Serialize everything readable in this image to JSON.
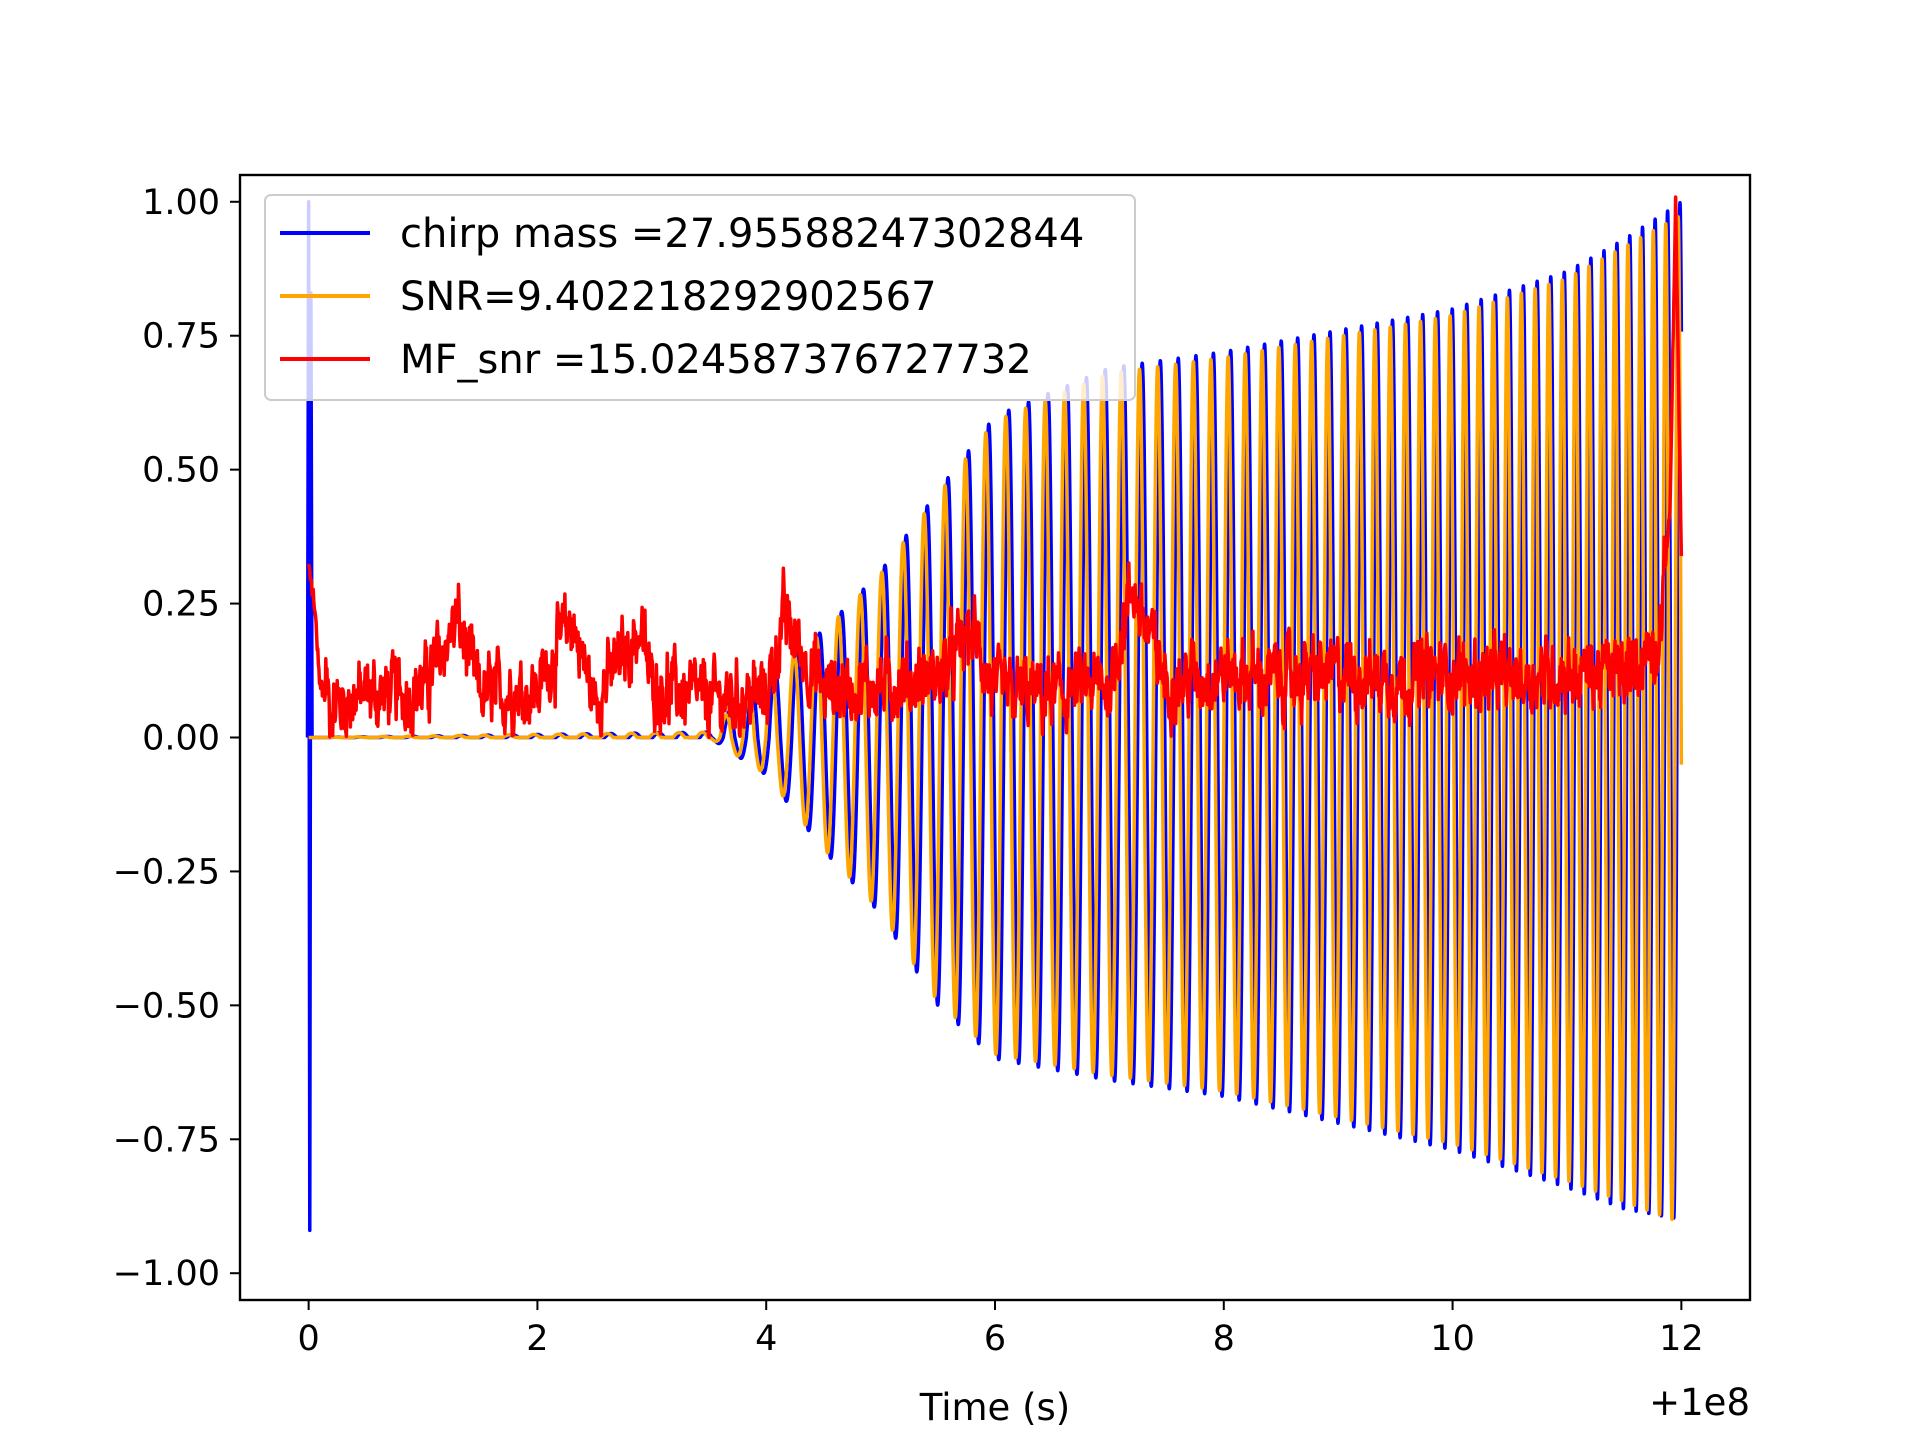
{
  "chart_data": {
    "type": "line",
    "title": "",
    "xlabel": "Time (s)",
    "ylabel": "",
    "x_offset_label": "+1e8",
    "xlim": [
      -0.6,
      12.6
    ],
    "ylim": [
      -1.05,
      1.05
    ],
    "x_ticks": [
      0,
      2,
      4,
      6,
      8,
      10,
      12
    ],
    "x_tick_labels": [
      "0",
      "2",
      "4",
      "6",
      "8",
      "10",
      "12"
    ],
    "y_ticks": [
      1.0,
      0.75,
      0.5,
      0.25,
      0.0,
      -0.25,
      -0.5,
      -0.75,
      -1.0
    ],
    "y_tick_labels": [
      "1.00",
      "0.75",
      "0.50",
      "0.25",
      "0.00",
      "−0.25",
      "−0.50",
      "−0.75",
      "−1.00"
    ],
    "grid": false,
    "legend_position": "top-left",
    "series": [
      {
        "name": "chirp mass =27.95588247302844",
        "color": "#0000ff",
        "description": "blue chirp waveform: spike at t=0 (1.0 / -0.92), then oscillation growing from ~0 after t=3.5 to envelope ~0.68/-0.62 at t=6-7, reaching 1.0/-0.9 at t=12",
        "envelope_t": [
          0.0,
          3.5,
          4.0,
          4.5,
          5.0,
          5.5,
          6.0,
          7.0,
          8.0,
          9.0,
          10.0,
          11.0,
          11.5,
          12.0
        ],
        "envelope_upper": [
          0.0,
          0.01,
          0.12,
          0.2,
          0.31,
          0.46,
          0.6,
          0.69,
          0.72,
          0.76,
          0.8,
          0.87,
          0.93,
          1.0
        ],
        "envelope_lower": [
          0.0,
          0.0,
          -0.07,
          -0.21,
          -0.33,
          -0.5,
          -0.6,
          -0.64,
          -0.67,
          -0.72,
          -0.77,
          -0.84,
          -0.88,
          -0.9
        ]
      },
      {
        "name": "SNR=9.402218292902567",
        "color": "#ffa500",
        "description": "orange waveform, same envelope as the blue one with slightly lower amplitude; flat at 0 before t=3.5",
        "envelope_t": [
          0.0,
          3.5,
          4.0,
          4.5,
          5.0,
          5.5,
          6.0,
          7.0,
          8.0,
          9.0,
          10.0,
          11.0,
          11.5,
          12.0
        ],
        "envelope_upper": [
          0.0,
          0.01,
          0.12,
          0.2,
          0.31,
          0.46,
          0.6,
          0.69,
          0.72,
          0.76,
          0.8,
          0.87,
          0.93,
          0.99
        ],
        "envelope_lower": [
          0.0,
          0.0,
          -0.07,
          -0.21,
          -0.33,
          -0.5,
          -0.6,
          -0.64,
          -0.67,
          -0.72,
          -0.77,
          -0.84,
          -0.88,
          -0.92
        ]
      },
      {
        "name": "MF_snr =15.024587376727732",
        "color": "#ff0000",
        "description": "red noisy matched-filter SNR trace mostly between 0 and 0.2, starting at ~0.32, peaking to 1.0 near t=11.95 and ending at ~0.33",
        "x": [
          0.0,
          0.05,
          0.1,
          0.2,
          0.5,
          1.0,
          1.3,
          1.5,
          2.0,
          2.3,
          2.5,
          2.9,
          3.0,
          3.5,
          4.0,
          4.15,
          4.5,
          5.0,
          5.5,
          5.8,
          6.0,
          6.5,
          7.0,
          7.2,
          7.5,
          8.0,
          8.5,
          9.0,
          9.5,
          10.0,
          10.5,
          11.0,
          11.5,
          11.8,
          11.9,
          11.95,
          12.0
        ],
        "y": [
          0.32,
          0.25,
          0.1,
          0.06,
          0.08,
          0.09,
          0.22,
          0.08,
          0.09,
          0.22,
          0.07,
          0.2,
          0.1,
          0.07,
          0.08,
          0.22,
          0.09,
          0.1,
          0.11,
          0.2,
          0.08,
          0.08,
          0.1,
          0.28,
          0.1,
          0.12,
          0.11,
          0.12,
          0.11,
          0.12,
          0.11,
          0.12,
          0.12,
          0.18,
          0.42,
          1.0,
          0.33
        ]
      }
    ]
  }
}
